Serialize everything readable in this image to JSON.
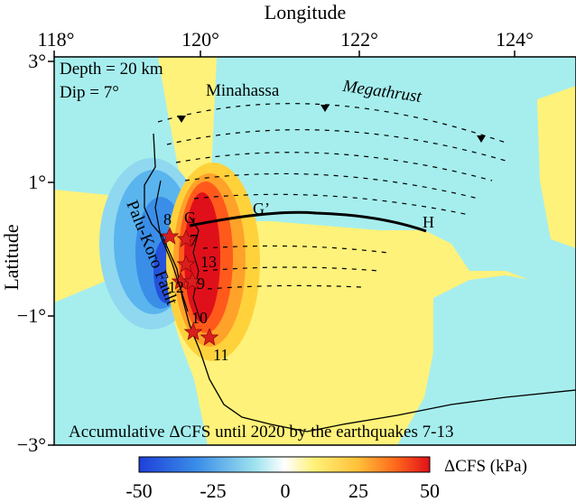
{
  "axes": {
    "x_title": "Longitude",
    "y_title": "Latitude",
    "x_ticks": [
      "118°",
      "120°",
      "122°",
      "124°"
    ],
    "y_ticks": [
      "3°",
      "1°",
      "−1°",
      "−3°"
    ]
  },
  "annotations": {
    "depth": "Depth = 20 km",
    "dip": "Dip = 7°",
    "minahassa": "Minahassa",
    "megathrust": "Megathrust",
    "fault": "Palu-Koro Fault",
    "profile_start": "G",
    "profile_mid": "G’",
    "profile_end": "H",
    "caption": "Accumulative ΔCFS until 2020 by the earthquakes 7-13"
  },
  "earthquakes": [
    "7",
    "8",
    "9",
    "10",
    "11",
    "12",
    "13"
  ],
  "colorbar": {
    "label": "ΔCFS (kPa)",
    "ticks": [
      "-50",
      "-25",
      "0",
      "25",
      "50"
    ],
    "colors": [
      "#1f3fd9",
      "#2f7fe8",
      "#5ab4ee",
      "#9fe3ee",
      "#ffffff",
      "#fff27a",
      "#ffd23c",
      "#ff8a1c",
      "#f5331a",
      "#e0101a"
    ]
  },
  "colors": {
    "positive_bg": "#fff27a",
    "negative_bg": "#a6eeee",
    "star": "#d81e1e"
  }
}
